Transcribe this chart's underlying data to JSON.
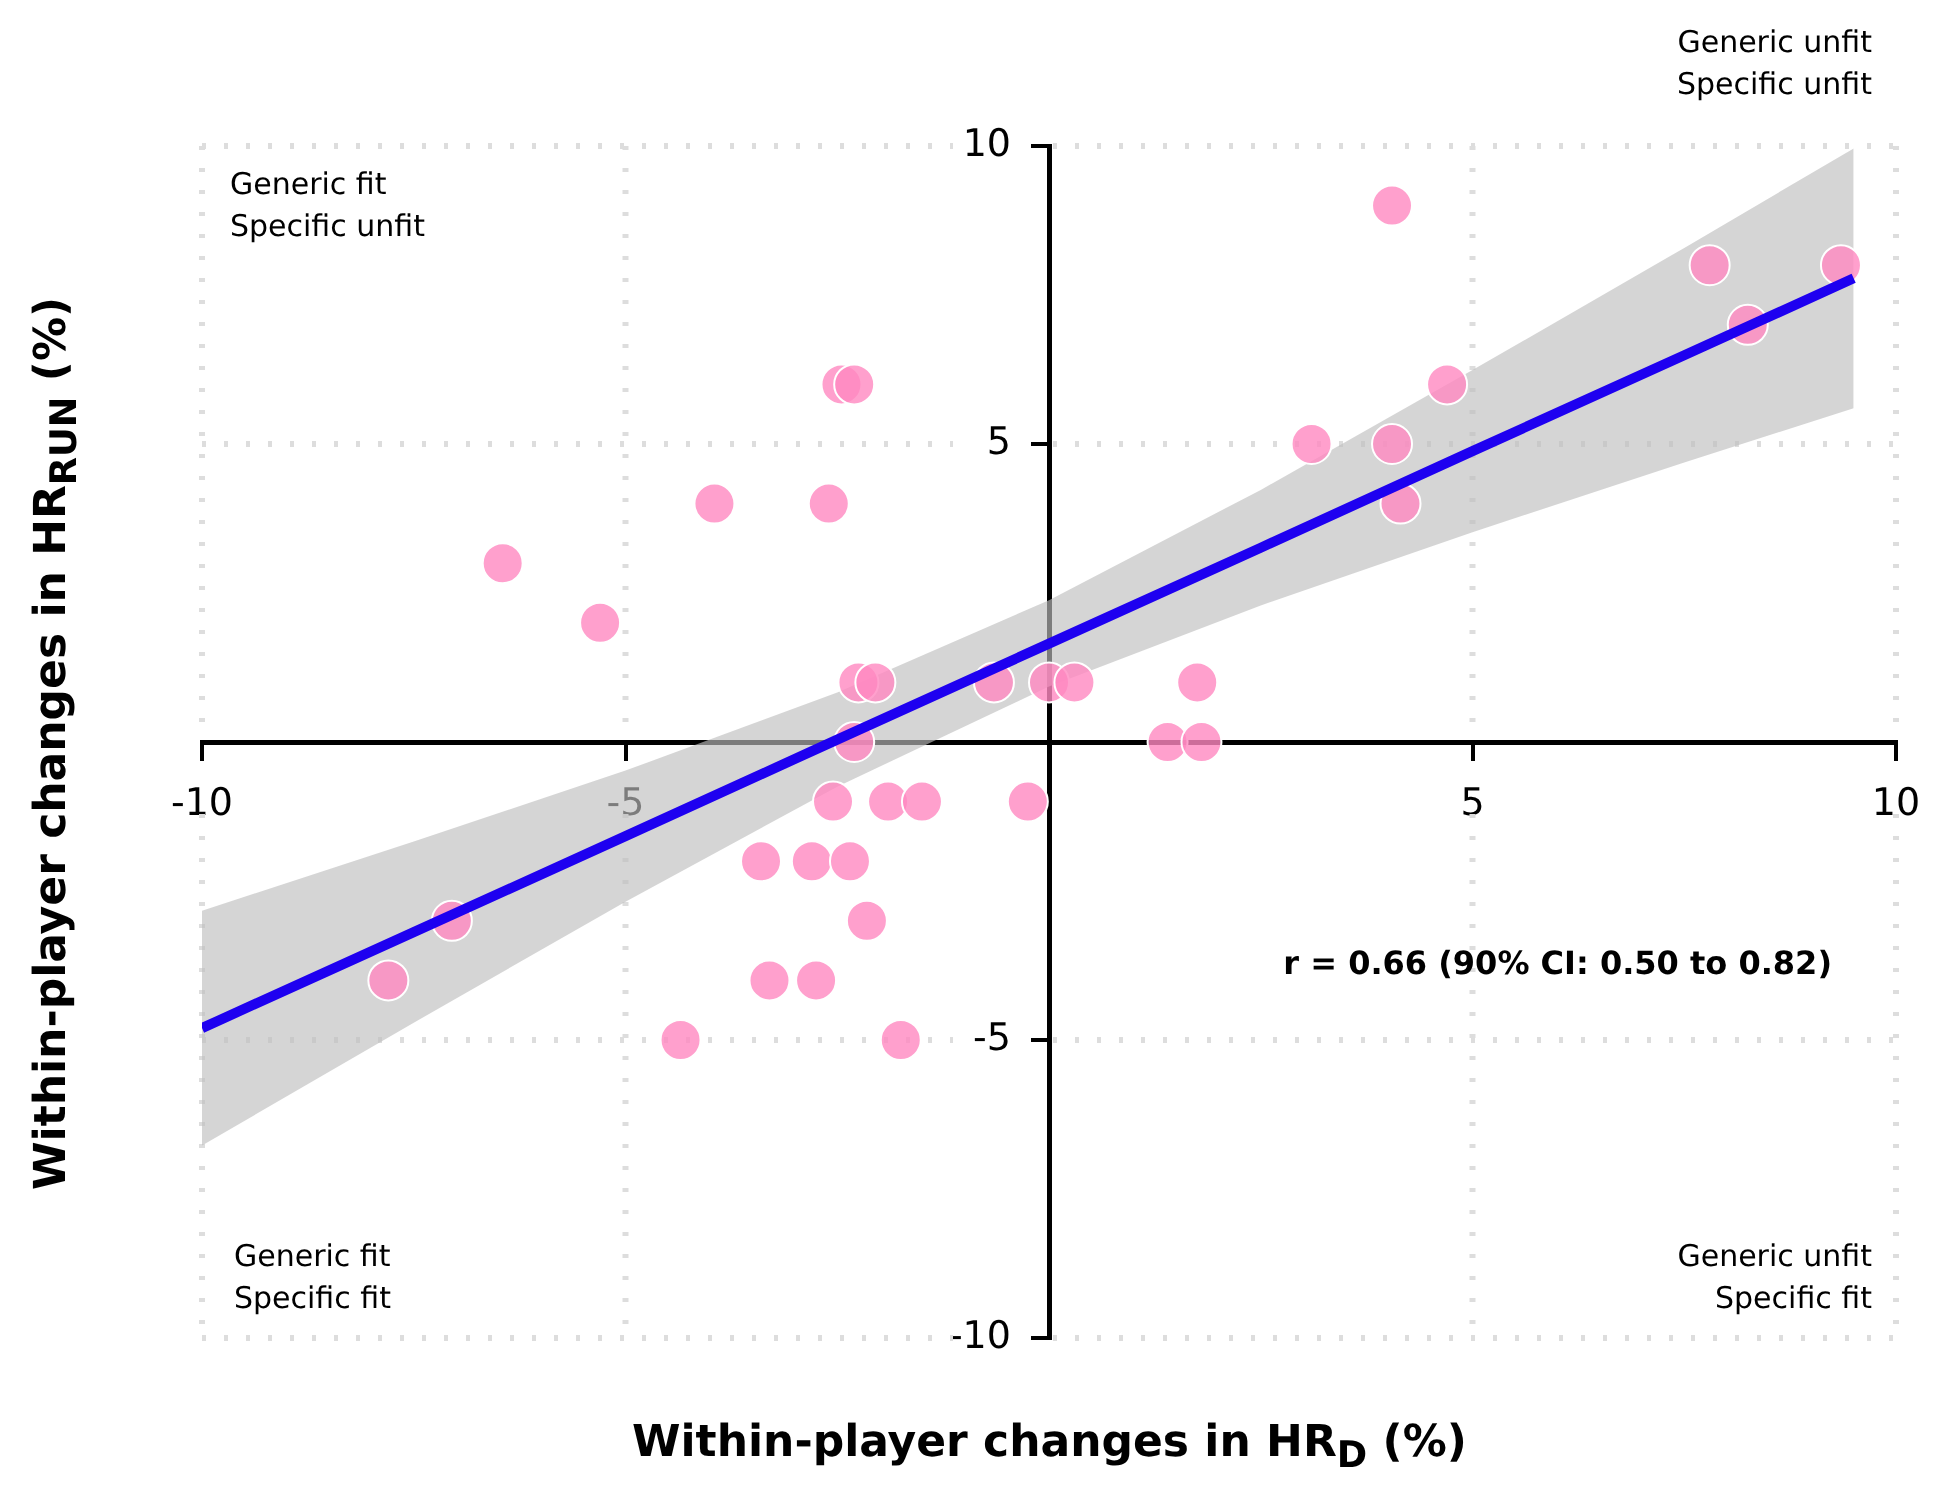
{
  "chart_data": {
    "type": "scatter",
    "xlabel": "Within-player changes in HR$_{D}$ (%)",
    "ylabel": "Within-player changes in HR$_{RUN}$ (%)",
    "xlim": [
      -10,
      10
    ],
    "ylim": [
      -10,
      10
    ],
    "xticks": [
      -10,
      -5,
      5,
      10
    ],
    "yticks": [
      -10,
      -5,
      5,
      10
    ],
    "grid": true,
    "legend": false,
    "annotations": [
      "Generic fit\nSpecific unfit",
      "Generic unfit\nSpecific unfit",
      "Generic fit\nSpecific fit",
      "Generic unfit\nSpecific fit",
      "r = 0.66 (90% CI: 0.50 to 0.82)"
    ],
    "series": [
      {
        "color": "#ff88c0",
        "marker": "circle",
        "x": [
          -6.45,
          -5.3,
          -3.95,
          -2.6,
          -2.45,
          -2.3,
          -2.25,
          -2.05,
          -2.3,
          -2.55,
          -1.9,
          -1.5,
          -0.25,
          -0.65,
          0,
          0.3,
          -3.4,
          -2.8,
          -2.35,
          -2.15,
          -3.3,
          -2.75,
          -4.35,
          -1.75,
          -7.8,
          -7.05,
          1.4,
          1.8,
          1.75,
          3.1,
          4.05,
          4.05,
          4.15,
          4.7,
          7.8,
          8.25,
          9.35
        ],
        "values": [
          3,
          2,
          4,
          4,
          6,
          6,
          1,
          1,
          0,
          -1,
          -1,
          -1,
          -1,
          1,
          1,
          1,
          -2,
          -2,
          -2,
          -3,
          -4,
          -4,
          -5,
          -5,
          -4,
          -3,
          0,
          0,
          1,
          5,
          9,
          5,
          4,
          6,
          8,
          7,
          8
        ]
      },
      {
        "type": "line",
        "marker": "none",
        "color": "#1e00f0",
        "x": [
          -10,
          -7.5,
          -5,
          -2.5,
          0,
          2.5,
          5,
          7.5,
          9.5
        ],
        "values": [
          -4.8,
          -3.19,
          -1.58,
          0.04,
          1.65,
          3.26,
          4.88,
          6.49,
          7.78
        ],
        "lower": [
          -6.77,
          -4.71,
          -2.68,
          -0.75,
          0.93,
          2.29,
          3.52,
          4.69,
          5.6
        ],
        "upper": [
          -2.83,
          -1.67,
          -0.48,
          0.83,
          2.38,
          4.23,
          6.24,
          8.29,
          9.96
        ]
      }
    ]
  }
}
